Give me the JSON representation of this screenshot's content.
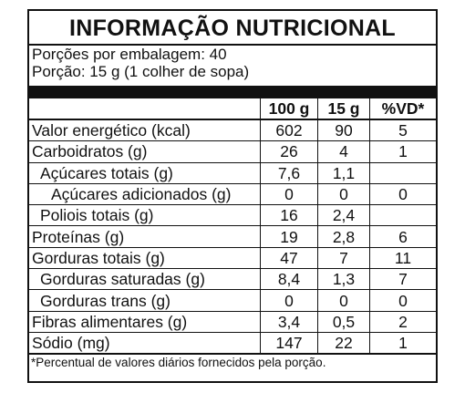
{
  "header": {
    "title": "INFORMAÇÃO NUTRICIONAL",
    "servings_per_package": "Porções por embalagem: 40",
    "serving": "Porção: 15 g (1 colher de sopa)"
  },
  "table": {
    "columns": [
      "100 g",
      "15 g",
      "%VD*"
    ],
    "rows": [
      [
        "Valor energético (kcal)",
        "602",
        "90",
        "5"
      ],
      [
        "Carboidratos (g)",
        "26",
        "4",
        "1"
      ],
      [
        "Açúcares totais (g)",
        "7,6",
        "1,1",
        null
      ],
      [
        "Açúcares adicionados (g)",
        "0",
        "0",
        "0"
      ],
      [
        "Poliois totais (g)",
        "16",
        "2,4",
        null
      ],
      [
        "Proteínas (g)",
        "19",
        "2,8",
        "6"
      ],
      [
        "Gorduras totais (g)",
        "47",
        "7",
        "11"
      ],
      [
        "Gorduras saturadas (g)",
        "8,4",
        "1,3",
        "7"
      ],
      [
        "Gorduras trans (g)",
        "0",
        "0",
        "0"
      ],
      [
        "Fibras alimentares (g)",
        "3,4",
        "0,5",
        "2"
      ],
      [
        "Sódio (mg)",
        "147",
        "22",
        "1"
      ]
    ]
  },
  "footnote": "*Percentual de valores diários fornecidos pela porção."
}
